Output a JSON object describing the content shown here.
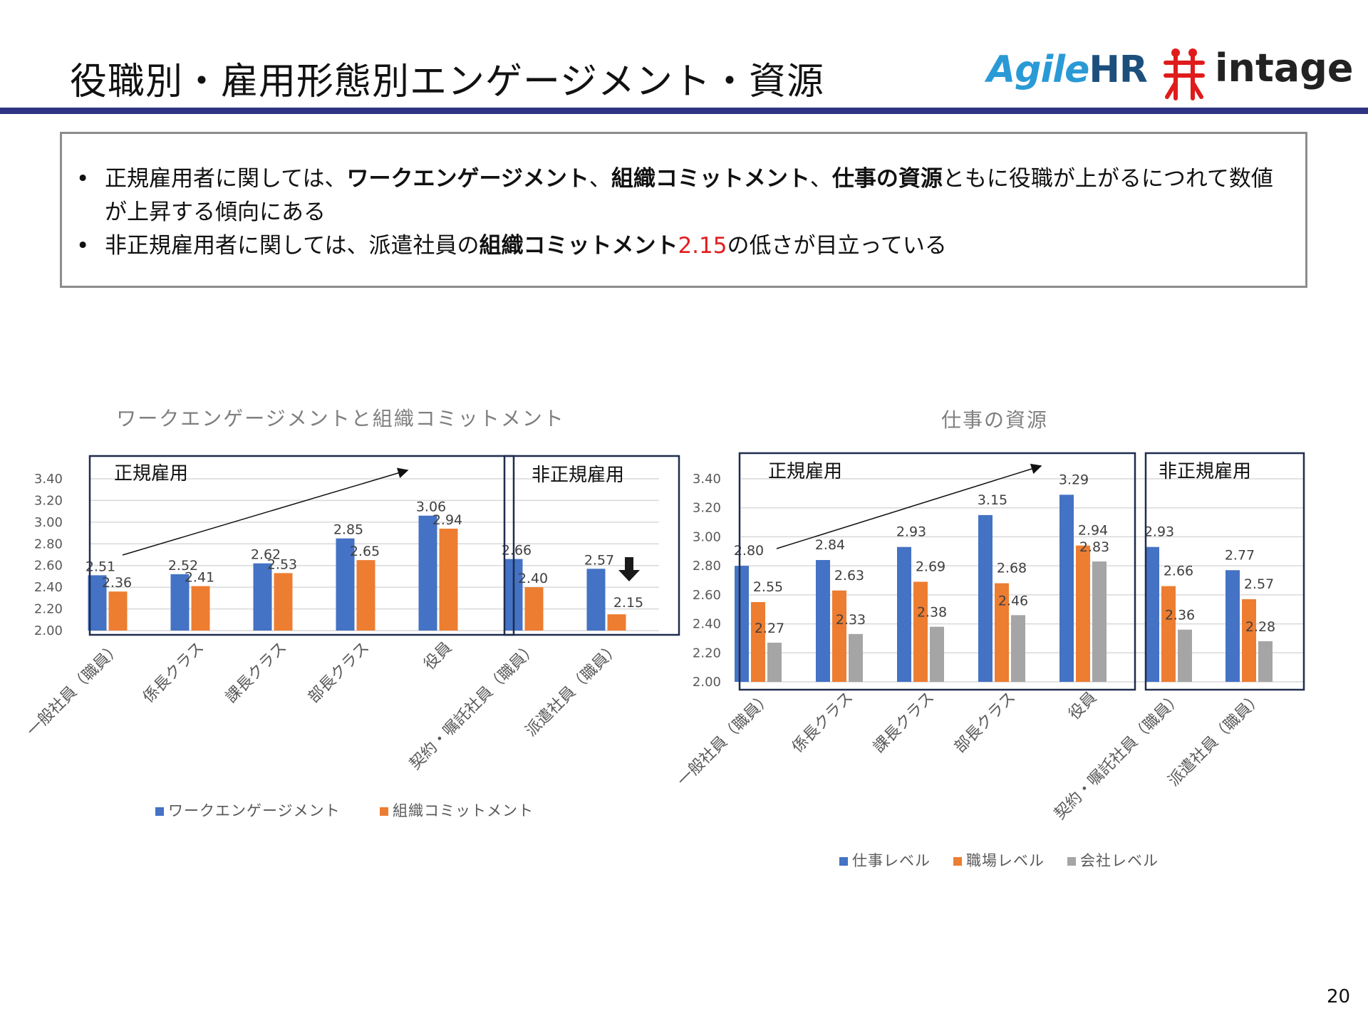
{
  "slide": {
    "title": "役職別・雇用形態別エンゲージメント・資源",
    "page_number": "20",
    "logos": {
      "agile_a": "Agile",
      "agile_hr": "HR",
      "intage": "intage"
    }
  },
  "summary": {
    "bullet_symbol": "•",
    "bullet1": {
      "p1": "正規雇用者に関しては、",
      "b1": "ワークエンゲージメント",
      "p2": "、",
      "b2": "組織コミットメント",
      "p3": "、",
      "b3": "仕事の資源",
      "p4": "ともに役職が上がるにつれて数値が上昇する傾向にある"
    },
    "bullet2": {
      "p1": "非正規雇用者に関しては、派遣社員の",
      "b1": "組織コミットメント",
      "red": "2.15",
      "p2": "の低さが目立っている"
    }
  },
  "chart_data": [
    {
      "type": "bar",
      "title": "ワークエンゲージメントと組織コミットメント",
      "categories": [
        "一般社員（職員）",
        "係長クラス",
        "課長クラス",
        "部長クラス",
        "役員",
        "契約・嘱託社員（職員）",
        "派遣社員（職員）"
      ],
      "series": [
        {
          "name": "ワークエンゲージメント",
          "color": "#4472c4",
          "values": [
            2.51,
            2.52,
            2.62,
            2.85,
            3.06,
            2.66,
            2.57
          ]
        },
        {
          "name": "組織コミットメント",
          "color": "#ed7d31",
          "values": [
            2.36,
            2.41,
            2.53,
            2.65,
            2.94,
            2.4,
            2.15
          ]
        }
      ],
      "ylim": [
        2.0,
        3.4
      ],
      "yticks": [
        "2.00",
        "2.20",
        "2.40",
        "2.60",
        "2.80",
        "3.00",
        "3.20",
        "3.40"
      ],
      "grid": true,
      "legend": "bottom",
      "groups": [
        {
          "label": "正規雇用",
          "from": 0,
          "to": 4
        },
        {
          "label": "非正規雇用",
          "from": 5,
          "to": 6
        }
      ]
    },
    {
      "type": "bar",
      "title": "仕事の資源",
      "categories": [
        "一般社員（職員）",
        "係長クラス",
        "課長クラス",
        "部長クラス",
        "役員",
        "契約・嘱託社員（職員）",
        "派遣社員（職員）"
      ],
      "series": [
        {
          "name": "仕事レベル",
          "color": "#4472c4",
          "values": [
            2.8,
            2.84,
            2.93,
            3.15,
            3.29,
            2.93,
            2.77
          ]
        },
        {
          "name": "職場レベル",
          "color": "#ed7d31",
          "values": [
            2.55,
            2.63,
            2.69,
            2.68,
            2.94,
            2.66,
            2.57
          ]
        },
        {
          "name": "会社レベル",
          "color": "#a5a5a5",
          "values": [
            2.27,
            2.33,
            2.38,
            2.46,
            2.83,
            2.36,
            2.28
          ]
        }
      ],
      "ylim": [
        2.0,
        3.4
      ],
      "yticks": [
        "2.00",
        "2.20",
        "2.40",
        "2.60",
        "2.80",
        "3.00",
        "3.20",
        "3.40"
      ],
      "grid": true,
      "legend": "bottom",
      "groups": [
        {
          "label": "正規雇用",
          "from": 0,
          "to": 4
        },
        {
          "label": "非正規雇用",
          "from": 5,
          "to": 6
        }
      ]
    }
  ]
}
